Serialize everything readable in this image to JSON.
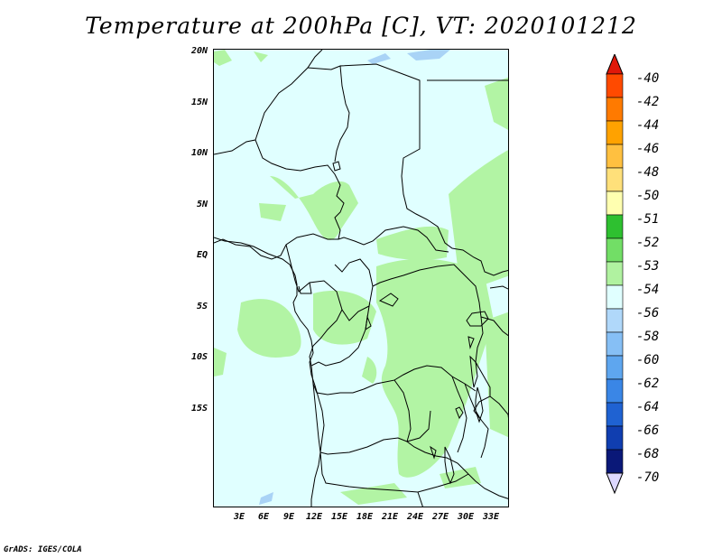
{
  "title": "Temperature at 200hPa [C], VT: 2020101212",
  "credit": "GrADS: IGES/COLA",
  "lat_labels": [
    "20N",
    "15N",
    "10N",
    "5N",
    "EQ",
    "5S",
    "10S",
    "15S"
  ],
  "lon_labels": [
    "3E",
    "6E",
    "9E",
    "12E",
    "15E",
    "18E",
    "21E",
    "24E",
    "27E",
    "30E",
    "33E"
  ],
  "colorbar": {
    "labels": [
      "-40",
      "-42",
      "-44",
      "-46",
      "-48",
      "-50",
      "-51",
      "-52",
      "-53",
      "-54",
      "-56",
      "-58",
      "-60",
      "-62",
      "-64",
      "-66",
      "-68",
      "-70"
    ],
    "colors": [
      "#e0180a",
      "#ff4a00",
      "#ff7a00",
      "#ffa200",
      "#ffc040",
      "#ffe07a",
      "#ffffb0",
      "#2ec030",
      "#72de66",
      "#b0f2a0",
      "#e0ffff",
      "#b0d8fa",
      "#86bff5",
      "#5ea6ef",
      "#3a86e6",
      "#1f62d2",
      "#103eb0",
      "#0a1878",
      "#ddd8ff"
    ]
  },
  "colors": {
    "background": "#e0ffff",
    "green": "#b2f4a4",
    "blue": "#a9d3f6",
    "border": "#000000"
  }
}
